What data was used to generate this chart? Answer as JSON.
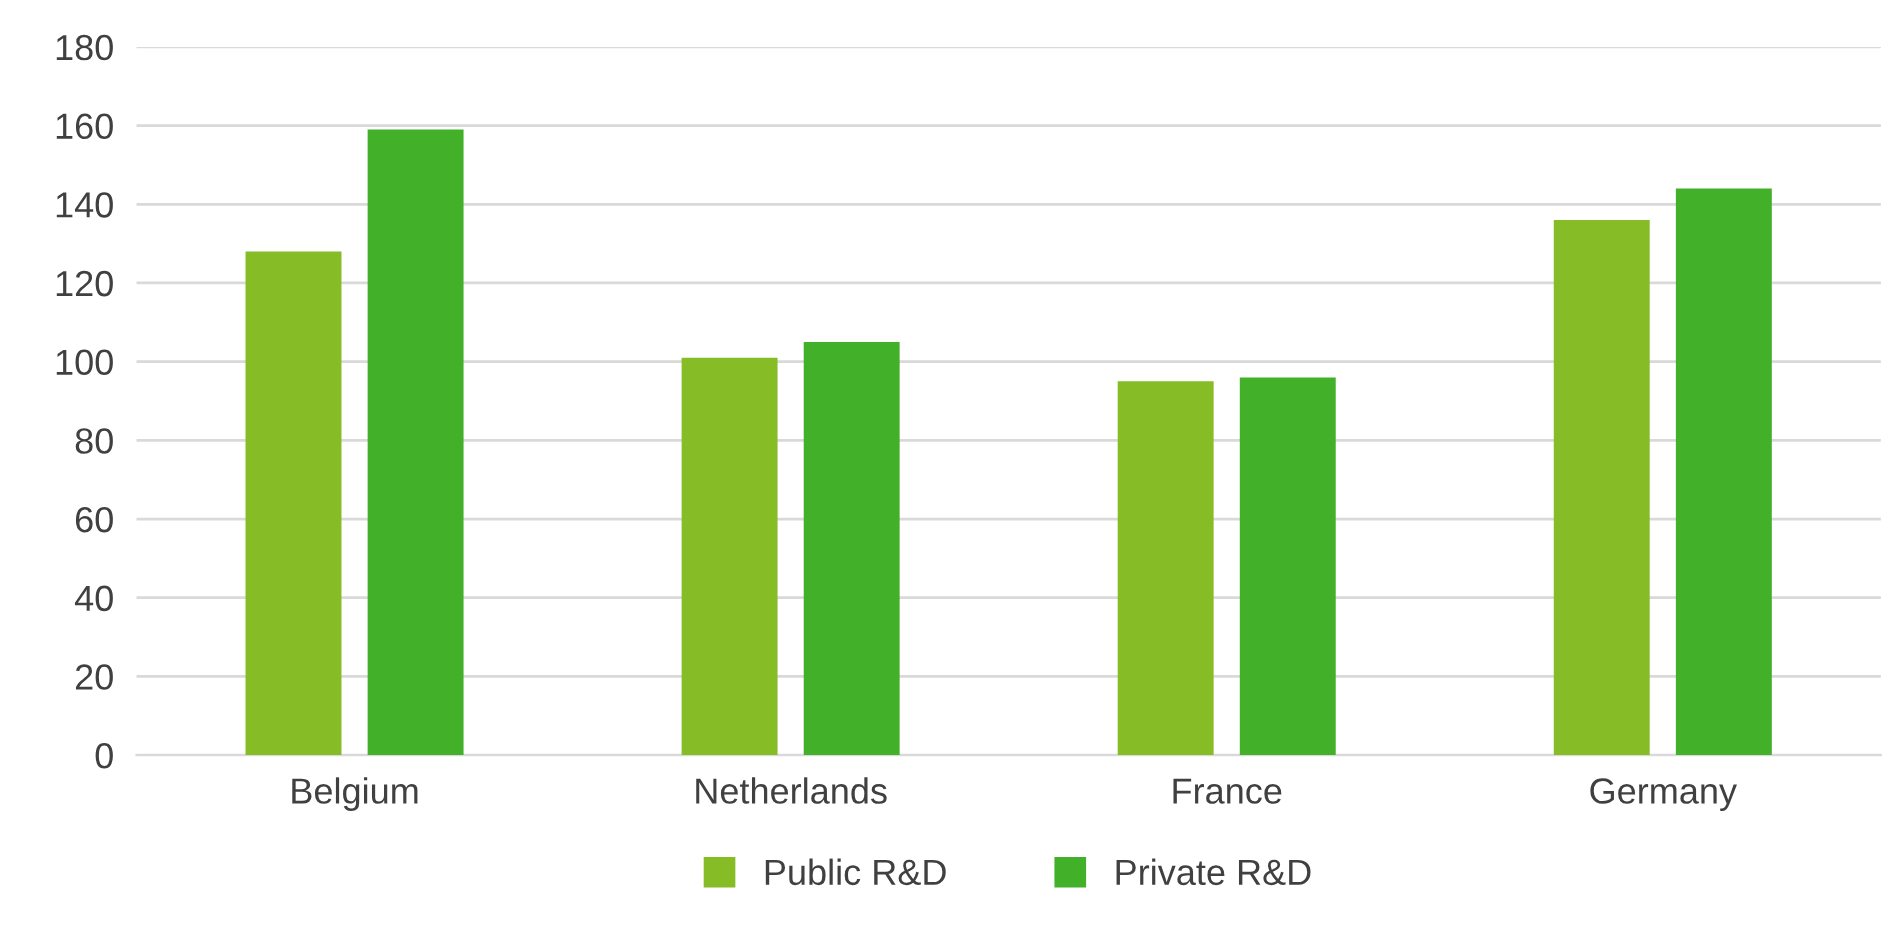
{
  "chart_data": {
    "type": "bar",
    "categories": [
      "Belgium",
      "Netherlands",
      "France",
      "Germany"
    ],
    "series": [
      {
        "name": "Public R&D",
        "color": "#86bc25",
        "values": [
          128,
          101,
          95,
          136
        ]
      },
      {
        "name": "Private R&D",
        "color": "#43b02a",
        "values": [
          159,
          105,
          96,
          144
        ]
      }
    ],
    "ylim": [
      0,
      180
    ],
    "yticks": [
      0,
      20,
      40,
      60,
      80,
      100,
      120,
      140,
      160,
      180
    ],
    "grid": "y",
    "legend": "bottom"
  }
}
